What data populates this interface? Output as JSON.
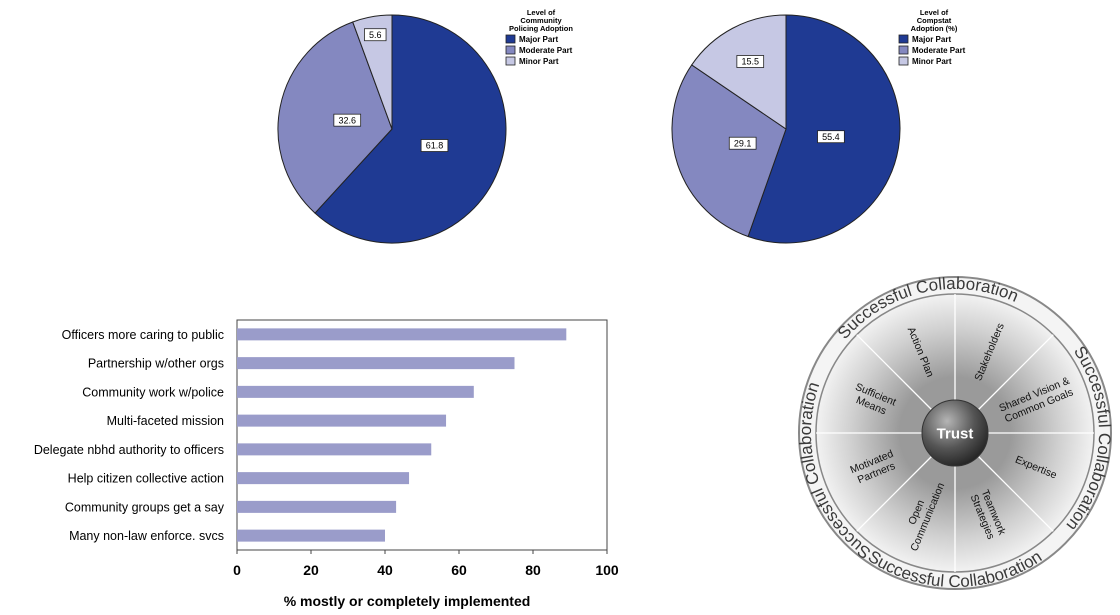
{
  "chart_data": [
    {
      "type": "pie",
      "legend_title_lines": [
        "Level of",
        "Community",
        "Policing Adoption"
      ],
      "legend_placement": "top-right",
      "categories": [
        "Major Part",
        "Moderate Part",
        "Minor Part"
      ],
      "values": [
        61.8,
        32.6,
        5.6
      ],
      "value_labels": [
        "61.8",
        "32.6",
        "5.6"
      ],
      "colors": [
        "#1f3a93",
        "#8488c0",
        "#c6c8e4"
      ]
    },
    {
      "type": "pie",
      "legend_title_lines": [
        "Level of",
        "Compstat",
        "Adoption (%)"
      ],
      "legend_placement": "top-right",
      "categories": [
        "Major Part",
        "Moderate Part",
        "Minor Part"
      ],
      "values": [
        55.4,
        29.1,
        15.5
      ],
      "value_labels": [
        "55.4",
        "29.1",
        "15.5"
      ],
      "colors": [
        "#1f3a93",
        "#8488c0",
        "#c6c8e4"
      ]
    },
    {
      "type": "bar",
      "orientation": "horizontal",
      "categories": [
        "Officers more caring to public",
        "Partnership w/other orgs",
        "Community work w/police",
        "Multi-faceted mission",
        "Delegate nbhd authority to officers",
        "Help citizen collective action",
        "Community groups get a say",
        "Many non-law enforce. svcs"
      ],
      "values": [
        89,
        75,
        64,
        56.5,
        52.5,
        46.5,
        43,
        40
      ],
      "xlim": [
        0,
        100
      ],
      "xticks": [
        "0",
        "20",
        "40",
        "60",
        "80",
        "100"
      ],
      "xlabel": "%  mostly or completely implemented",
      "bar_color": "#9a9cca",
      "grid": false
    }
  ],
  "diagram": {
    "center": "Trust",
    "ring_text": "Successful Collaboration",
    "segments": [
      [
        "Stakeholders"
      ],
      [
        "Shared Vision &",
        "Common Goals"
      ],
      [
        "Expertise"
      ],
      [
        "Teamwork",
        "Strategies"
      ],
      [
        "Open",
        "Communication"
      ],
      [
        "Motivated",
        "Partners"
      ],
      [
        "Sufficient",
        "Means"
      ],
      [
        "Action Plan"
      ]
    ]
  }
}
